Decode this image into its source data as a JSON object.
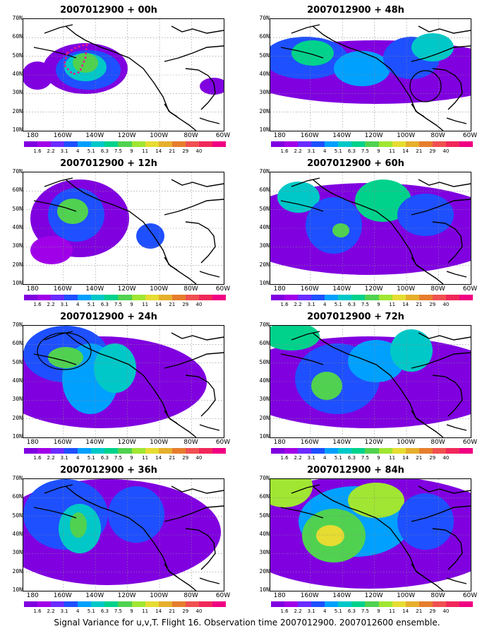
{
  "colors": [
    "#8000e0",
    "#a000e8",
    "#6a2bff",
    "#1e50ff",
    "#00a0ff",
    "#00c8c8",
    "#00d28c",
    "#50d250",
    "#a0e632",
    "#e6dc32",
    "#e6af2d",
    "#e67d2d",
    "#f05050",
    "#f0285a",
    "#f00082"
  ],
  "colorbar": {
    "labels": [
      "1.6",
      "2.2",
      "3.1",
      "4",
      "5.1",
      "6.3",
      "7.5",
      "9",
      "11",
      "14",
      "21",
      "29",
      "40"
    ]
  },
  "axes": {
    "y_labels": [
      "70N",
      "60N",
      "50N",
      "40N",
      "30N",
      "20N",
      "10N"
    ],
    "x_labels": [
      "180",
      "160W",
      "140W",
      "120W",
      "100W",
      "80W",
      "60W"
    ]
  },
  "panels": [
    {
      "title": "2007012900 + 00h"
    },
    {
      "title": "2007012900 + 48h"
    },
    {
      "title": "2007012900 + 12h"
    },
    {
      "title": "2007012900 + 60h"
    },
    {
      "title": "2007012900 + 24h"
    },
    {
      "title": "2007012900 + 72h"
    },
    {
      "title": "2007012900 + 36h"
    },
    {
      "title": "2007012900 + 84h"
    }
  ],
  "caption": "Signal Variance for u,v,T. Flight 16. Observation time 2007012900. 2007012600 ensemble."
}
